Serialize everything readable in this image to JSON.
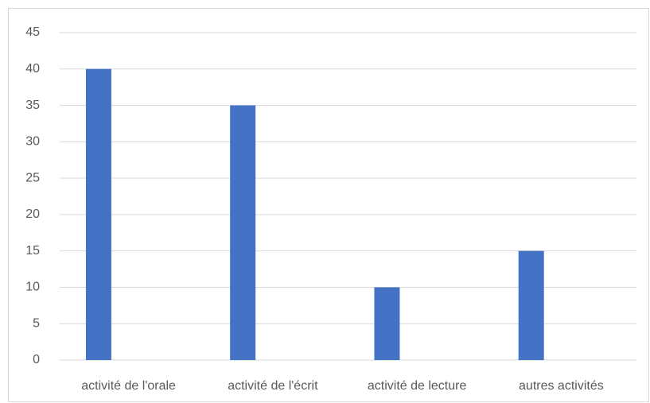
{
  "chart_data": {
    "type": "bar",
    "categories": [
      "activité de l'orale",
      "activité de l'écrit",
      "activité de lecture",
      "autres activités"
    ],
    "values": [
      40,
      35,
      10,
      15
    ],
    "color": "#4472c4",
    "ylim": [
      0,
      45
    ],
    "yticks": [
      0,
      5,
      10,
      15,
      20,
      25,
      30,
      35,
      40,
      45
    ],
    "grid": true
  }
}
